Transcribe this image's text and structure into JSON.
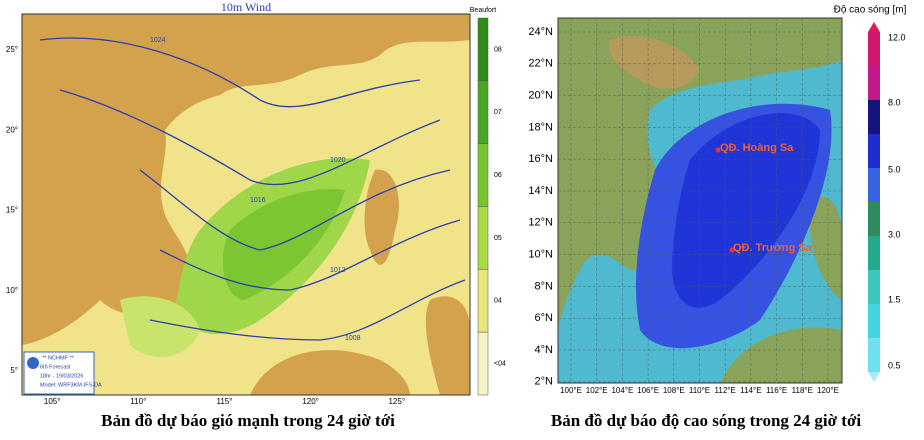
{
  "wind_map": {
    "title": "10m Wind",
    "scale_title": "Beaufort",
    "scale_labels": [
      "08",
      "07",
      "06",
      "05",
      "04",
      "<04"
    ],
    "lon_labels": [
      "105°",
      "110°",
      "115°",
      "120°",
      "125°"
    ],
    "lat_labels": [
      "25°",
      "20°",
      "15°",
      "10°",
      "5°"
    ],
    "isobar_labels": [
      "1024",
      "1020",
      "1016",
      "1012",
      "1008"
    ],
    "legend": [
      "** NCHMF **",
      "6th Forecast",
      "18hr - 19/03/2026",
      "Model: WRF3KM-IFS-DA"
    ],
    "caption": "Bản đồ dự báo gió mạnh trong 24 giờ tới"
  },
  "wave_map": {
    "scale_title": "Độ cao sóng [m]",
    "scale_labels": [
      "12.0",
      "8.0",
      "5.0",
      "3.0",
      "1.5",
      "0.5"
    ],
    "lat_labels": [
      "24°N",
      "22°N",
      "20°N",
      "18°N",
      "16°N",
      "14°N",
      "12°N",
      "10°N",
      "8°N",
      "6°N",
      "4°N",
      "2°N"
    ],
    "lon_labels": [
      "100°E",
      "102°E",
      "104°E",
      "106°E",
      "108°E",
      "110°E",
      "112°E",
      "114°E",
      "116°E",
      "118°E",
      "120°E"
    ],
    "places": [
      "QĐ. Hoàng Sa",
      "QĐ. Trường Sa"
    ],
    "caption": "Bản đồ dự báo độ cao sóng trong 24 giờ tới"
  }
}
